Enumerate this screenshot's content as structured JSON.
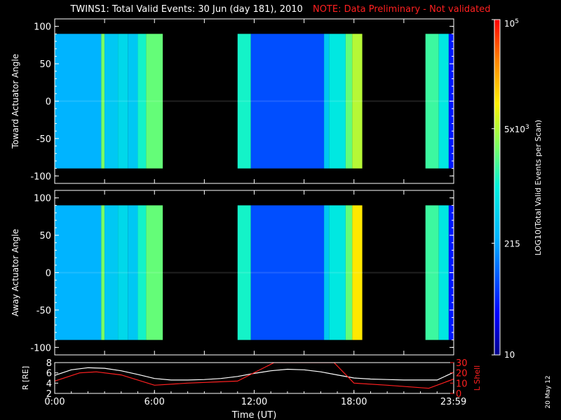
{
  "header": {
    "title": "TWINS1: Total Valid Events: 30 Jun (day 181), 2010",
    "note": "NOTE: Data Preliminary - Not validated"
  },
  "colors": {
    "background": "#000000",
    "axis": "#ffffff",
    "note": "#ff2020",
    "r_line": "#ffffff",
    "lshell_line": "#ff2020"
  },
  "colorbar": {
    "label": "LOG10(Total Valid Events per Scan)",
    "tick_labels": [
      "10",
      "215",
      "5x10^3",
      "10^5"
    ],
    "tick_values": [
      10,
      215,
      5000,
      100000
    ],
    "scale": "log",
    "colormap": "blue-cyan-green-yellow-red"
  },
  "chart_data": [
    {
      "type": "heatmap",
      "ylabel": "Toward Actuator Angle",
      "ylim": [
        -110,
        110
      ],
      "xlim_hours": [
        0,
        24
      ],
      "yticks": [
        -100,
        -50,
        0,
        50,
        100
      ],
      "data_angle_range": [
        -90,
        90
      ],
      "segments": [
        {
          "start": 0.0,
          "end": 2.8,
          "level": 0.35
        },
        {
          "start": 2.8,
          "end": 3.0,
          "level": 0.62
        },
        {
          "start": 3.0,
          "end": 3.8,
          "level": 0.4
        },
        {
          "start": 3.8,
          "end": 4.4,
          "level": 0.44
        },
        {
          "start": 4.4,
          "end": 5.0,
          "level": 0.4
        },
        {
          "start": 5.0,
          "end": 5.5,
          "level": 0.52
        },
        {
          "start": 5.5,
          "end": 6.5,
          "level": 0.6
        },
        {
          "start": 11.0,
          "end": 11.8,
          "level": 0.52
        },
        {
          "start": 11.8,
          "end": 16.2,
          "level": 0.22
        },
        {
          "start": 16.2,
          "end": 16.5,
          "level": 0.4
        },
        {
          "start": 16.5,
          "end": 17.5,
          "level": 0.48
        },
        {
          "start": 17.5,
          "end": 17.9,
          "level": 0.6
        },
        {
          "start": 17.9,
          "end": 18.5,
          "level": 0.68
        },
        {
          "start": 22.3,
          "end": 23.1,
          "level": 0.56
        },
        {
          "start": 23.1,
          "end": 23.7,
          "level": 0.48
        },
        {
          "start": 23.7,
          "end": 23.98,
          "level": 0.15
        }
      ]
    },
    {
      "type": "heatmap",
      "ylabel": "Away Actuator Angle",
      "ylim": [
        -110,
        110
      ],
      "xlim_hours": [
        0,
        24
      ],
      "yticks": [
        -100,
        -50,
        0,
        50,
        100
      ],
      "data_angle_range": [
        -90,
        90
      ],
      "segments": [
        {
          "start": 0.0,
          "end": 2.8,
          "level": 0.35
        },
        {
          "start": 2.8,
          "end": 3.0,
          "level": 0.62
        },
        {
          "start": 3.0,
          "end": 3.8,
          "level": 0.4
        },
        {
          "start": 3.8,
          "end": 4.4,
          "level": 0.44
        },
        {
          "start": 4.4,
          "end": 5.0,
          "level": 0.4
        },
        {
          "start": 5.0,
          "end": 5.5,
          "level": 0.52
        },
        {
          "start": 5.5,
          "end": 6.5,
          "level": 0.6
        },
        {
          "start": 11.0,
          "end": 11.8,
          "level": 0.52
        },
        {
          "start": 11.8,
          "end": 16.2,
          "level": 0.22
        },
        {
          "start": 16.2,
          "end": 16.5,
          "level": 0.4
        },
        {
          "start": 16.5,
          "end": 17.5,
          "level": 0.48
        },
        {
          "start": 17.5,
          "end": 17.9,
          "level": 0.6
        },
        {
          "start": 17.9,
          "end": 18.5,
          "level": 0.76
        },
        {
          "start": 22.3,
          "end": 23.1,
          "level": 0.56
        },
        {
          "start": 23.1,
          "end": 23.7,
          "level": 0.48
        },
        {
          "start": 23.7,
          "end": 23.98,
          "level": 0.15
        }
      ]
    },
    {
      "type": "line",
      "xlabel": "Time (UT)",
      "x_tick_labels": [
        "0:00",
        "6:00",
        "12:00",
        "18:00",
        "23:59"
      ],
      "x_tick_values": [
        0,
        6,
        12,
        18,
        23.983
      ],
      "xlim": [
        0,
        24
      ],
      "ylabel_left": "R [RE]",
      "ylim_left": [
        2,
        8
      ],
      "yticks_left": [
        2,
        4,
        6,
        8
      ],
      "ylabel_right": "L Shell",
      "ylim_right": [
        0,
        30
      ],
      "yticks_right": [
        0,
        10,
        20,
        30
      ],
      "series": [
        {
          "axis": "left",
          "color": "#ffffff",
          "x": [
            0,
            1,
            2,
            3,
            4,
            5,
            6,
            7,
            8,
            9,
            10,
            11,
            12,
            13,
            14,
            15,
            16,
            17,
            18,
            19,
            20,
            21,
            22,
            23,
            24
          ],
          "y": [
            5.5,
            6.6,
            7.0,
            6.9,
            6.4,
            5.7,
            4.9,
            4.6,
            4.6,
            4.7,
            4.9,
            5.3,
            5.9,
            6.4,
            6.7,
            6.6,
            6.2,
            5.6,
            5.0,
            4.8,
            4.7,
            4.6,
            4.6,
            4.6,
            6.1
          ]
        },
        {
          "axis": "right",
          "color": "#ff2020",
          "x": [
            0,
            1.5,
            2.5,
            4,
            6,
            8,
            11,
            13.2,
            16.8,
            18,
            20,
            22.5,
            24
          ],
          "y": [
            12,
            20,
            21,
            18,
            8,
            10,
            12,
            30,
            30,
            10,
            8,
            5,
            14
          ]
        }
      ]
    }
  ],
  "footer": {
    "date_stamp": "20 May 12"
  }
}
